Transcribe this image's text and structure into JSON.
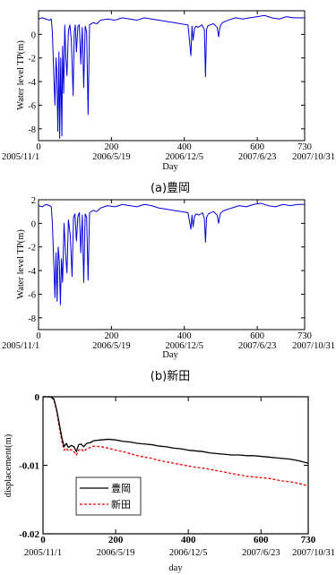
{
  "chart_data": [
    {
      "id": "a",
      "type": "line",
      "caption": "(a)豊岡",
      "xlabel": "Day",
      "ylabel": "Water level TP(m)",
      "xlim": [
        0,
        730
      ],
      "ylim": [
        -9,
        2
      ],
      "x_ticks": [
        0,
        200,
        400,
        600,
        730
      ],
      "y_ticks": [
        0,
        -2,
        -4,
        -6,
        -8
      ],
      "date_labels": [
        {
          "x": 0,
          "label": "2005/11/1"
        },
        {
          "x": 200,
          "label": "2006/5/19"
        },
        {
          "x": 400,
          "label": "2006/12/5"
        },
        {
          "x": 600,
          "label": "2007/6/23"
        },
        {
          "x": 730,
          "label": "2007/10/31"
        }
      ],
      "series": [
        {
          "color": "#0000dd",
          "x": [
            0,
            10,
            20,
            30,
            35,
            38,
            42,
            45,
            48,
            50,
            53,
            56,
            58,
            61,
            64,
            66,
            69,
            72,
            75,
            78,
            82,
            86,
            90,
            95,
            98,
            101,
            104,
            108,
            112,
            116,
            120,
            124,
            128,
            132,
            136,
            140,
            150,
            160,
            170,
            190,
            210,
            230,
            250,
            270,
            290,
            310,
            330,
            350,
            370,
            390,
            410,
            418,
            421,
            424,
            428,
            432,
            438,
            448,
            455,
            458,
            461,
            464,
            470,
            480,
            490,
            494,
            497,
            500,
            505,
            520,
            540,
            560,
            580,
            600,
            620,
            640,
            660,
            680,
            700,
            730
          ],
          "y": [
            1.3,
            1.4,
            1.3,
            1.2,
            1.3,
            0.2,
            -3.5,
            -6.0,
            -2.0,
            -3.0,
            -8.2,
            -1.5,
            -8.8,
            -2.0,
            -8.6,
            -1.0,
            -5.0,
            0.8,
            -2.0,
            -3.5,
            0.3,
            0.8,
            -0.5,
            -5.2,
            0.2,
            0.8,
            -1.5,
            0.7,
            0.8,
            -2.5,
            0.6,
            -4.5,
            0.7,
            0.2,
            -6.8,
            0.8,
            1.0,
            0.9,
            1.2,
            1.3,
            1.2,
            1.4,
            1.3,
            1.2,
            1.4,
            1.3,
            1.2,
            1.1,
            1.0,
            0.9,
            0.8,
            -1.8,
            0.7,
            -0.5,
            0.5,
            0.7,
            0.6,
            0.8,
            0.4,
            -3.6,
            0.4,
            0.7,
            0.8,
            0.9,
            0.6,
            -0.2,
            0.5,
            0.8,
            1.0,
            1.2,
            1.4,
            1.3,
            1.4,
            1.5,
            1.6,
            1.4,
            1.3,
            1.5,
            1.4,
            1.4
          ]
        }
      ]
    },
    {
      "id": "b",
      "type": "line",
      "caption": "(b)新田",
      "xlabel": "Day",
      "ylabel": "Water level TP(m)",
      "xlim": [
        0,
        730
      ],
      "ylim": [
        -9,
        2
      ],
      "x_ticks": [
        0,
        200,
        400,
        600,
        730
      ],
      "y_ticks": [
        2,
        0,
        -2,
        -4,
        -6,
        -8
      ],
      "date_labels": [
        {
          "x": 0,
          "label": "2005/11/1"
        },
        {
          "x": 200,
          "label": "2006/5/19"
        },
        {
          "x": 400,
          "label": "2006/12/5"
        },
        {
          "x": 600,
          "label": "2007/6/23"
        },
        {
          "x": 730,
          "label": "2007/10/31"
        }
      ],
      "series": [
        {
          "color": "#0000dd",
          "x": [
            0,
            10,
            20,
            30,
            35,
            38,
            42,
            45,
            48,
            51,
            54,
            57,
            60,
            63,
            66,
            70,
            74,
            78,
            82,
            87,
            92,
            96,
            100,
            104,
            108,
            112,
            116,
            120,
            124,
            128,
            132,
            136,
            140,
            150,
            160,
            170,
            190,
            210,
            230,
            250,
            270,
            290,
            310,
            330,
            350,
            370,
            390,
            410,
            418,
            421,
            424,
            428,
            432,
            440,
            450,
            455,
            458,
            461,
            466,
            480,
            490,
            494,
            497,
            500,
            510,
            530,
            550,
            570,
            590,
            610,
            630,
            650,
            670,
            690,
            710,
            730
          ],
          "y": [
            1.5,
            1.4,
            1.6,
            1.5,
            1.4,
            0.0,
            -3.5,
            -6.3,
            -2.5,
            -6.6,
            -2.0,
            -3.2,
            -6.9,
            -3.0,
            -5.0,
            0.0,
            -2.5,
            -4.2,
            0.3,
            -1.0,
            -4.5,
            0.5,
            0.8,
            -1.5,
            0.6,
            0.9,
            -2.5,
            0.7,
            -5.0,
            0.8,
            0.5,
            -4.8,
            0.9,
            1.1,
            1.0,
            1.3,
            1.5,
            1.4,
            1.6,
            1.5,
            1.4,
            1.6,
            1.5,
            1.3,
            1.2,
            1.1,
            1.0,
            0.9,
            -0.5,
            0.7,
            -0.3,
            0.6,
            0.8,
            0.7,
            0.9,
            0.4,
            -1.6,
            0.5,
            0.8,
            1.0,
            0.7,
            0.0,
            0.6,
            0.9,
            1.1,
            1.3,
            1.5,
            1.4,
            1.6,
            1.7,
            1.5,
            1.4,
            1.6,
            1.5,
            1.6,
            1.6
          ]
        }
      ]
    },
    {
      "id": "c",
      "type": "line",
      "xlabel": "day",
      "ylabel": "displacement(m)",
      "xlim": [
        0,
        730
      ],
      "ylim": [
        -0.02,
        0
      ],
      "x_ticks": [
        0,
        200,
        400,
        600,
        730
      ],
      "y_ticks": [
        0,
        -0.01,
        -0.02
      ],
      "y_tick_labels": [
        "0",
        "-0.01",
        "-0.02"
      ],
      "date_labels": [
        {
          "x": 0,
          "label": "2005/11/1"
        },
        {
          "x": 200,
          "label": "2006/5/19"
        },
        {
          "x": 400,
          "label": "2006/12/5"
        },
        {
          "x": 600,
          "label": "2007/6/23"
        },
        {
          "x": 730,
          "label": "2007/10/31"
        }
      ],
      "legend_position": "lower-left",
      "series": [
        {
          "name": "豊岡",
          "color": "#000000",
          "dash": "solid",
          "x": [
            0,
            20,
            30,
            38,
            45,
            52,
            58,
            64,
            70,
            78,
            85,
            92,
            98,
            105,
            112,
            120,
            130,
            140,
            160,
            180,
            200,
            220,
            240,
            260,
            280,
            300,
            320,
            340,
            360,
            380,
            400,
            420,
            440,
            460,
            480,
            500,
            520,
            540,
            560,
            580,
            600,
            620,
            640,
            660,
            680,
            700,
            715,
            730
          ],
          "y": [
            0,
            0,
            -0.0003,
            -0.002,
            -0.004,
            -0.006,
            -0.0073,
            -0.0068,
            -0.0074,
            -0.0071,
            -0.0073,
            -0.008,
            -0.007,
            -0.0069,
            -0.0073,
            -0.0068,
            -0.0067,
            -0.0064,
            -0.0063,
            -0.0062,
            -0.0063,
            -0.0065,
            -0.0066,
            -0.0068,
            -0.0069,
            -0.007,
            -0.0072,
            -0.0073,
            -0.0075,
            -0.0076,
            -0.0078,
            -0.0079,
            -0.008,
            -0.0082,
            -0.0083,
            -0.0084,
            -0.0085,
            -0.0085,
            -0.0086,
            -0.0086,
            -0.0087,
            -0.0088,
            -0.0089,
            -0.009,
            -0.0091,
            -0.0093,
            -0.0095,
            -0.0097
          ]
        },
        {
          "name": "新田",
          "color": "#ee0000",
          "dash": "dashed",
          "x": [
            0,
            20,
            30,
            38,
            45,
            52,
            58,
            64,
            70,
            78,
            85,
            92,
            98,
            105,
            112,
            120,
            130,
            140,
            160,
            180,
            200,
            220,
            240,
            260,
            280,
            300,
            320,
            340,
            360,
            380,
            400,
            420,
            440,
            460,
            480,
            500,
            520,
            540,
            560,
            580,
            600,
            620,
            640,
            660,
            680,
            700,
            715,
            730
          ],
          "y": [
            0,
            0,
            -0.0004,
            -0.0022,
            -0.0045,
            -0.0065,
            -0.0078,
            -0.0075,
            -0.0079,
            -0.0077,
            -0.008,
            -0.0085,
            -0.0078,
            -0.0076,
            -0.008,
            -0.0076,
            -0.0074,
            -0.0072,
            -0.0073,
            -0.0075,
            -0.0078,
            -0.008,
            -0.0083,
            -0.0086,
            -0.0088,
            -0.009,
            -0.0093,
            -0.0095,
            -0.0097,
            -0.0099,
            -0.0101,
            -0.0103,
            -0.0104,
            -0.0106,
            -0.0108,
            -0.011,
            -0.0112,
            -0.0114,
            -0.0116,
            -0.0117,
            -0.0118,
            -0.0119,
            -0.0121,
            -0.0123,
            -0.0124,
            -0.0126,
            -0.0128,
            -0.013
          ]
        }
      ]
    }
  ]
}
